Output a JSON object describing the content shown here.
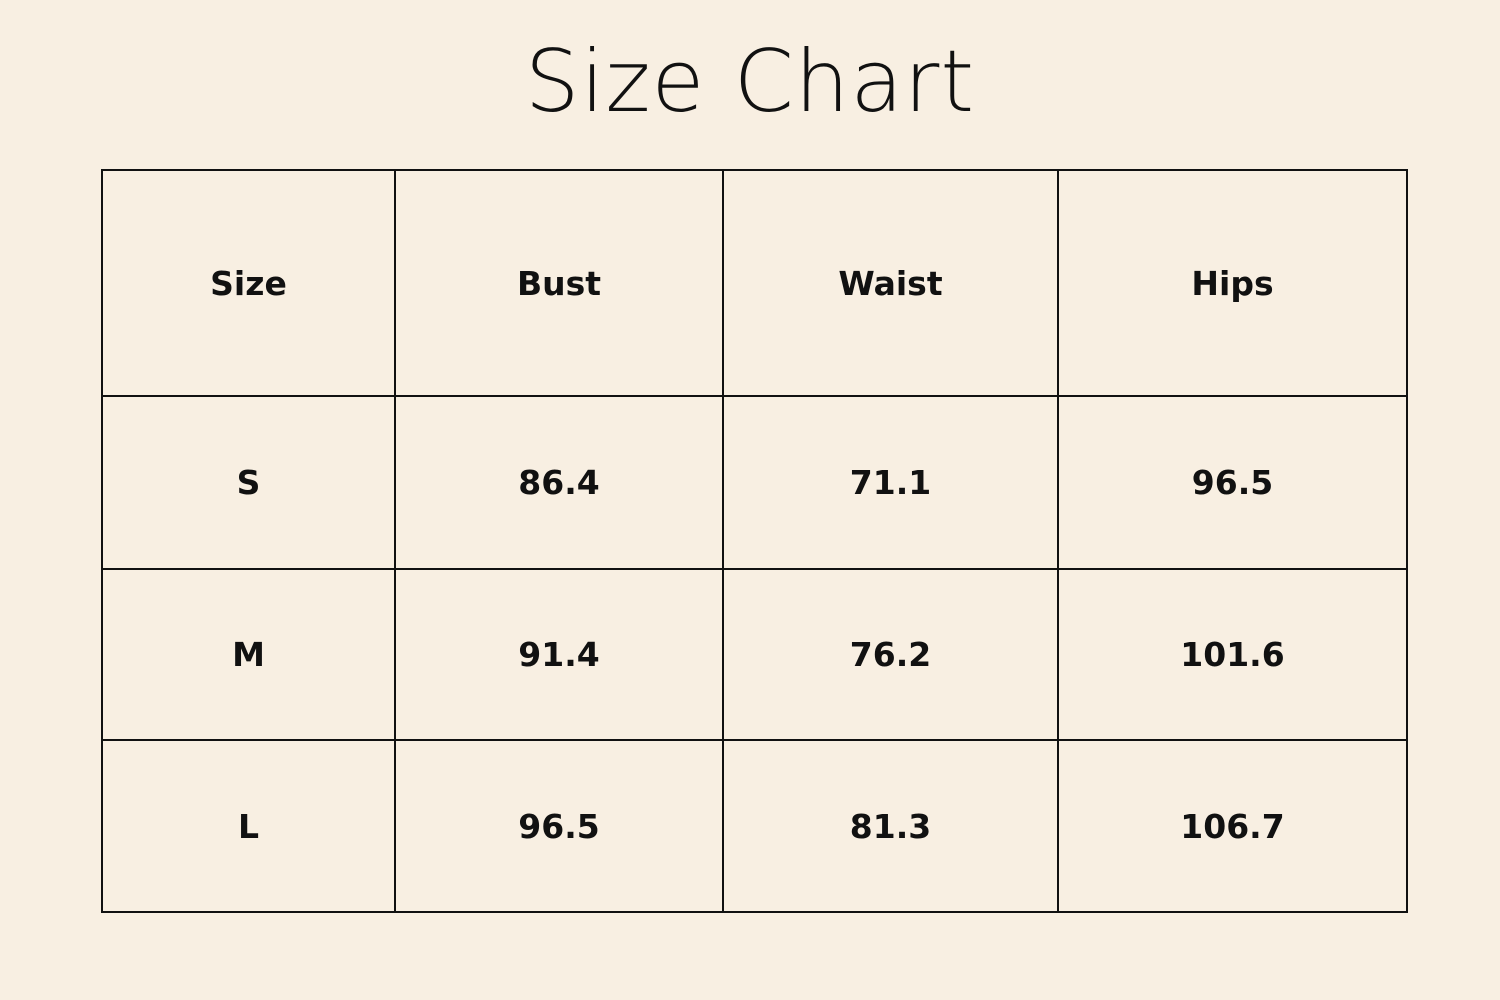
{
  "title": "Size Chart",
  "table": {
    "headers": [
      "Size",
      "Bust",
      "Waist",
      "Hips"
    ],
    "rows": [
      [
        "S",
        "86.4",
        "71.1",
        "96.5"
      ],
      [
        "M",
        "91.4",
        "76.2",
        "101.6"
      ],
      [
        "L",
        "96.5",
        "81.3",
        "106.7"
      ]
    ]
  },
  "colors": {
    "background": "#f8efe2",
    "text": "#111111",
    "border": "#111111"
  }
}
